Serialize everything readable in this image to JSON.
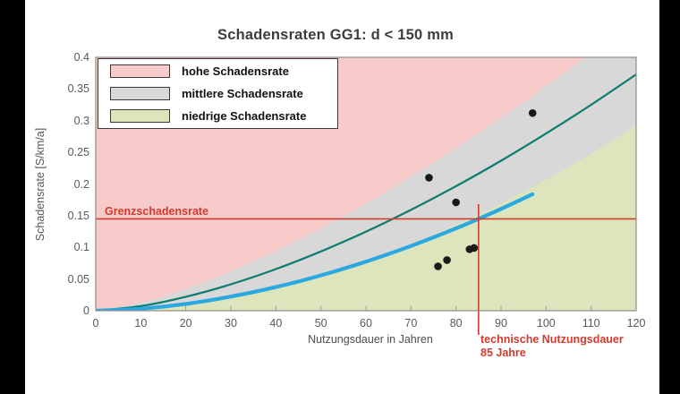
{
  "colors": {
    "band_high": "#f7cbca",
    "band_mid": "#d8d8d8",
    "band_low": "#dde5bd",
    "curve_teal": "#0b7c6e",
    "curve_blue": "#29a9e0",
    "reference_red": "#d23b2d",
    "scatter_point": "#1a1a1a",
    "plot_border": "#948b86",
    "tick_mark": "#9f9f9f",
    "frame_bars": "#000000"
  },
  "chart_data": {
    "type": "line",
    "title": "Schadensraten GG1: d < 150 mm",
    "xlabel": "Nutzungsdauer in Jahren",
    "ylabel": "Schadensrate [S/km/a]",
    "xlim": [
      0,
      120
    ],
    "ylim": [
      0,
      0.4
    ],
    "x_ticks": [
      0,
      10,
      20,
      30,
      40,
      50,
      60,
      70,
      80,
      90,
      100,
      110,
      120
    ],
    "y_ticks": [
      "0",
      "0.05",
      "0.1",
      "0.15",
      "0.2",
      "0.25",
      "0.3",
      "0.35",
      "0.4"
    ],
    "grid": false,
    "legend_position": "upper-left",
    "bands": [
      {
        "id": "band-high",
        "label": "hohe Schadensrate",
        "color": "#f7cbca",
        "region": "above_upper_boundary"
      },
      {
        "id": "band-mid",
        "label": "mittlere Schadensrate",
        "color": "#d8d8d8",
        "region": "between_boundaries"
      },
      {
        "id": "band-low",
        "label": "niedrige Schadensrate",
        "color": "#dde5bd",
        "region": "below_lower_boundary"
      }
    ],
    "band_boundaries": {
      "upper": [
        [
          0,
          0
        ],
        [
          10,
          0.0126
        ],
        [
          20,
          0.0344
        ],
        [
          30,
          0.0618
        ],
        [
          40,
          0.0938
        ],
        [
          50,
          0.1297
        ],
        [
          60,
          0.1689
        ],
        [
          70,
          0.2113
        ],
        [
          80,
          0.2564
        ],
        [
          90,
          0.3041
        ],
        [
          100,
          0.3543
        ],
        [
          110,
          0.4069
        ],
        [
          120,
          0.4615
        ]
      ],
      "lower": [
        [
          0,
          0
        ],
        [
          10,
          0.0026
        ],
        [
          20,
          0.0097
        ],
        [
          30,
          0.021
        ],
        [
          40,
          0.0362
        ],
        [
          50,
          0.0554
        ],
        [
          60,
          0.0783
        ],
        [
          70,
          0.1049
        ],
        [
          80,
          0.1352
        ],
        [
          90,
          0.1691
        ],
        [
          100,
          0.2066
        ],
        [
          110,
          0.2476
        ],
        [
          120,
          0.2921
        ]
      ]
    },
    "series": [
      {
        "id": "curve-teal",
        "color": "#0b7c6e",
        "stroke_width": 2.2,
        "points": [
          [
            0,
            0
          ],
          [
            10,
            0.0073
          ],
          [
            20,
            0.022
          ],
          [
            30,
            0.0417
          ],
          [
            40,
            0.0657
          ],
          [
            50,
            0.0936
          ],
          [
            60,
            0.1248
          ],
          [
            70,
            0.1592
          ],
          [
            80,
            0.1966
          ],
          [
            90,
            0.2367
          ],
          [
            100,
            0.2797
          ],
          [
            110,
            0.3251
          ],
          [
            120,
            0.373
          ]
        ]
      },
      {
        "id": "curve-blue",
        "color": "#29a9e0",
        "stroke_width": 4.2,
        "points": [
          [
            0,
            0
          ],
          [
            10,
            0.0031
          ],
          [
            20,
            0.0107
          ],
          [
            30,
            0.0223
          ],
          [
            40,
            0.0373
          ],
          [
            50,
            0.0558
          ],
          [
            60,
            0.0775
          ],
          [
            70,
            0.1022
          ],
          [
            80,
            0.13
          ],
          [
            85,
            0.145
          ],
          [
            90,
            0.1607
          ],
          [
            97,
            0.1839
          ]
        ]
      }
    ],
    "scatter": [
      [
        74,
        0.21
      ],
      [
        80,
        0.171
      ],
      [
        76,
        0.07
      ],
      [
        78,
        0.08
      ],
      [
        83,
        0.097
      ],
      [
        84,
        0.099
      ],
      [
        97,
        0.312
      ]
    ],
    "reference_lines": {
      "horizontal": {
        "label": "Grenzschadensrate",
        "value": 0.145
      },
      "vertical": {
        "value": 85,
        "label_lines": [
          "technische Nutzungsdauer",
          "85 Jahre"
        ]
      }
    }
  }
}
